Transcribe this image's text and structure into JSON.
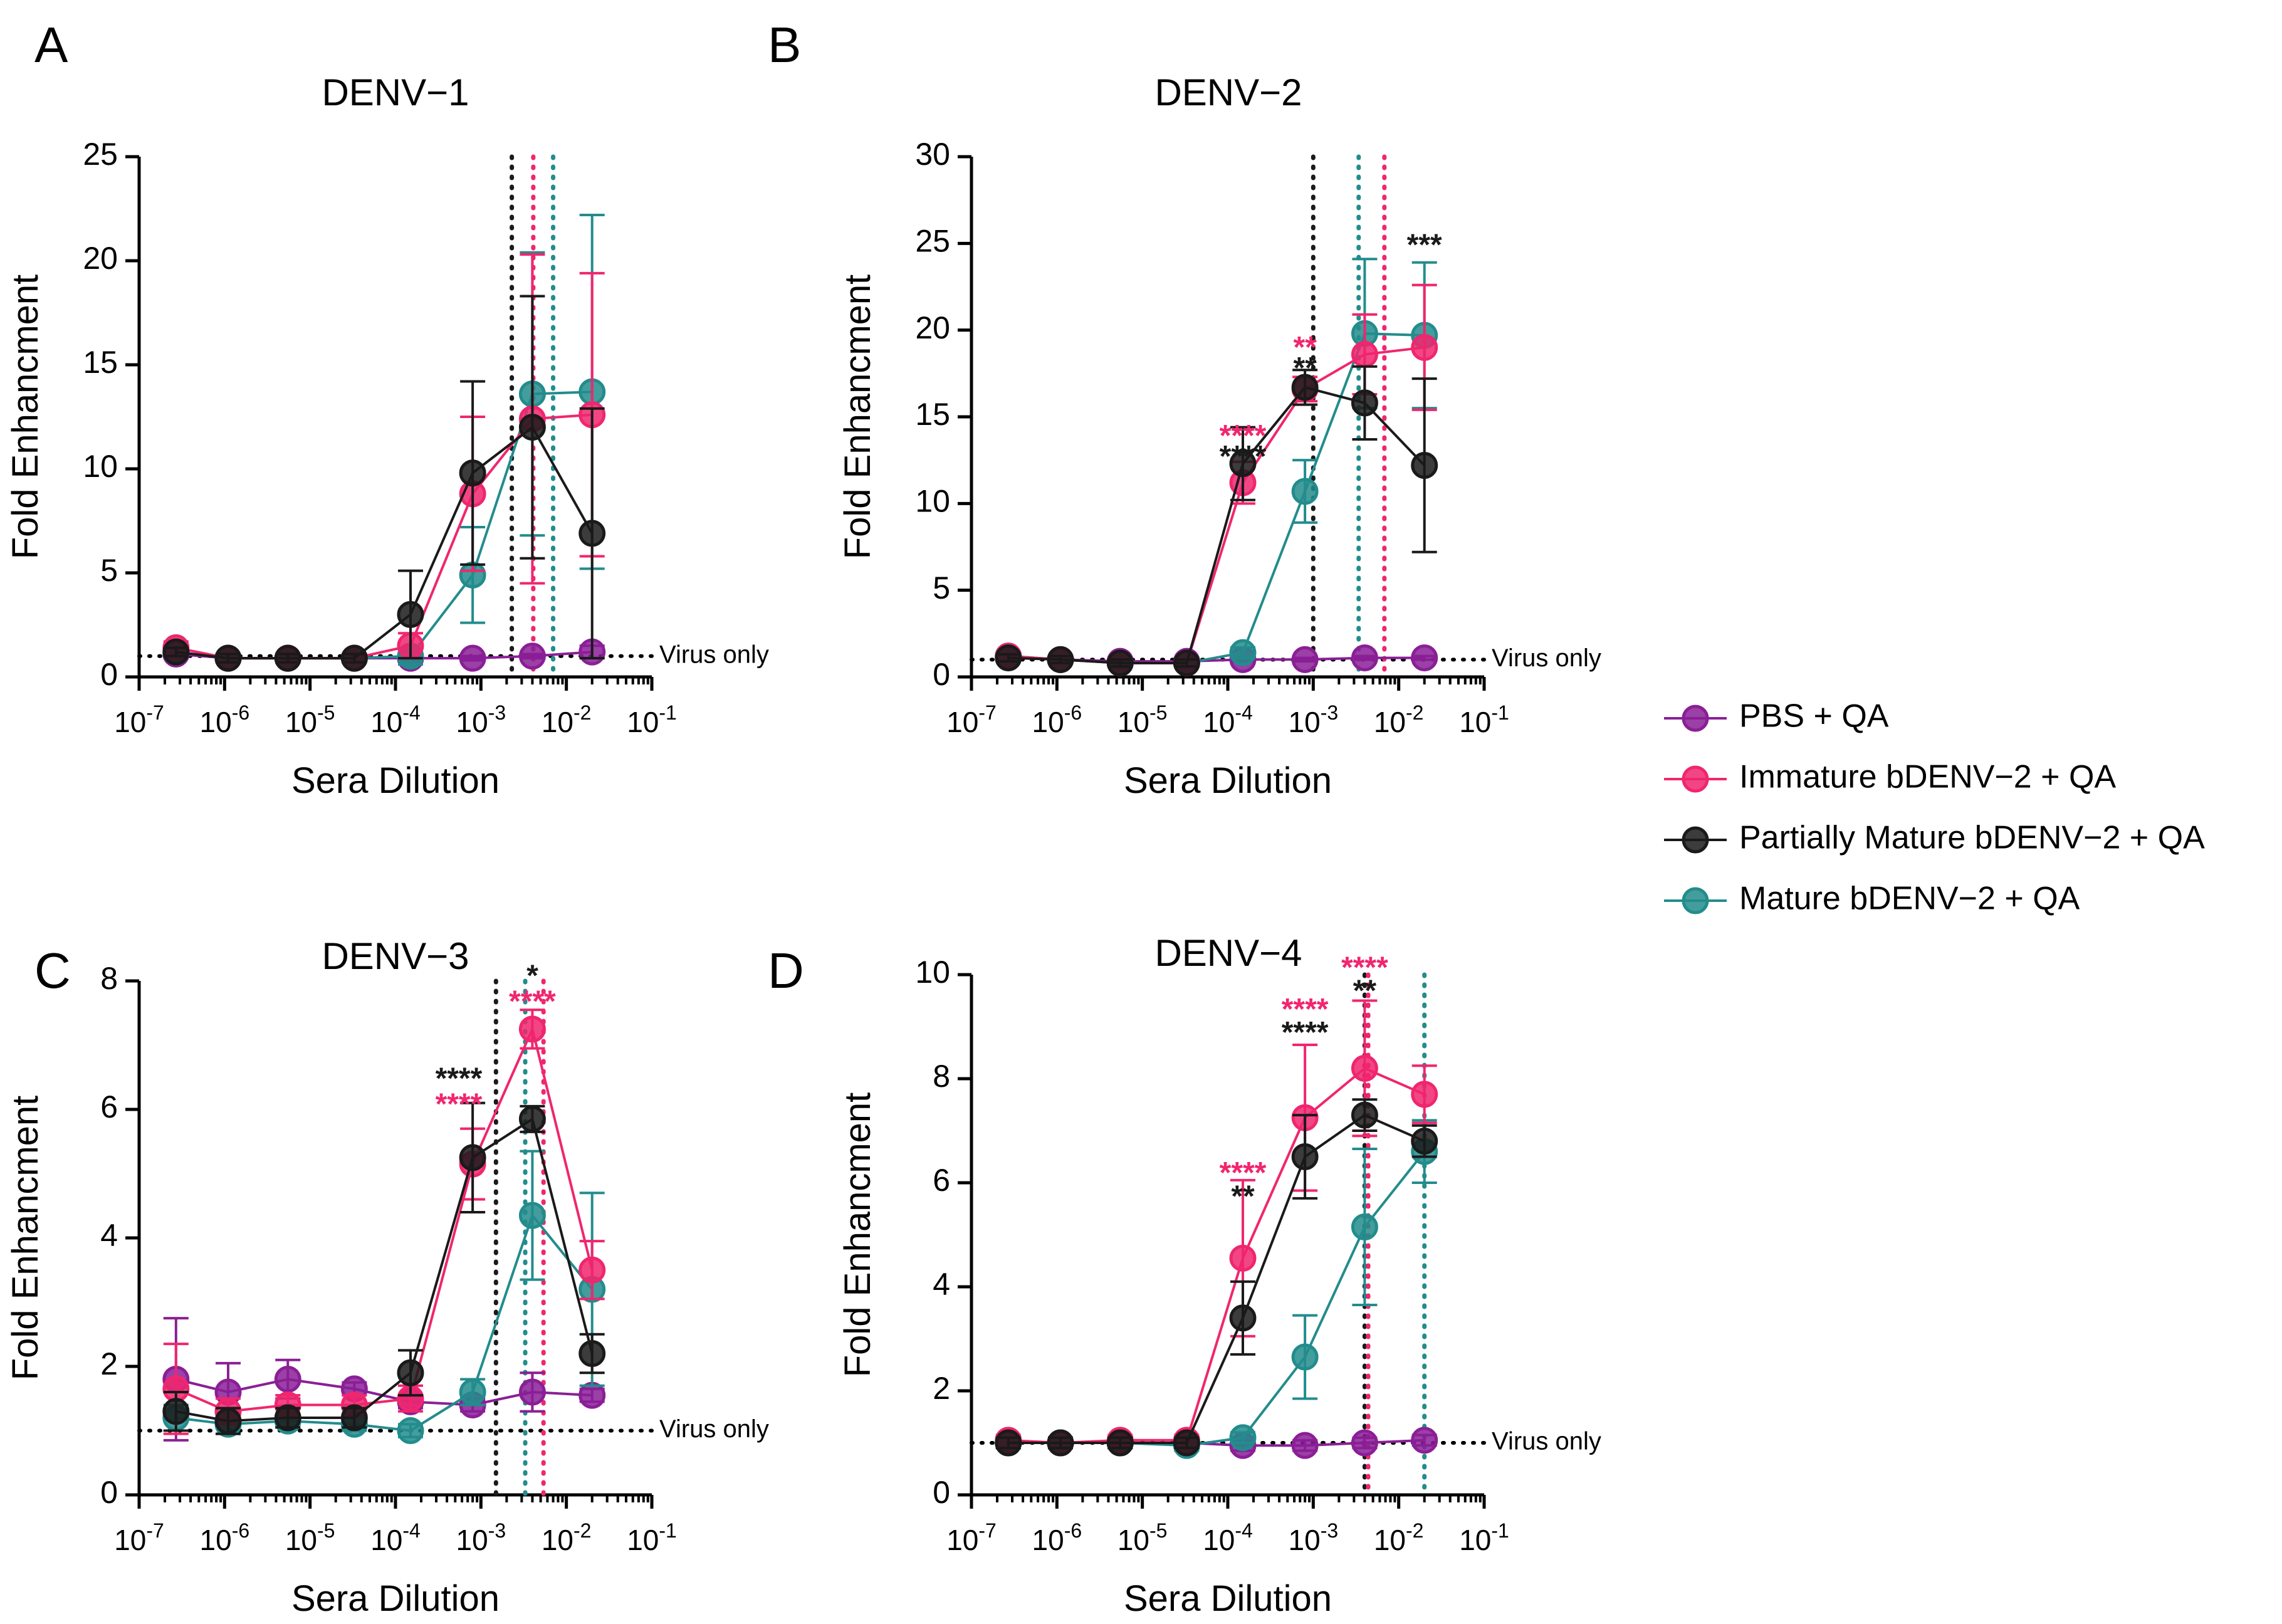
{
  "figure": {
    "panel_letters": [
      "A",
      "B",
      "C",
      "D"
    ],
    "colors": {
      "PBS + QA": "#8a1f96",
      "Immature bDENV-2 + QA": "#f0266e",
      "Partially Mature bDENV-2 + QA": "#1a1a1a",
      "Mature bDENV-2 + QA": "#238c8c",
      "axis": "#000000",
      "baseline": "#000000"
    },
    "legend": [
      {
        "name": "PBS + QA",
        "label": "PBS + QA"
      },
      {
        "name": "Immature bDENV-2 + QA",
        "label": "Immature bDENV−2 + QA"
      },
      {
        "name": "Partially Mature bDENV-2 + QA",
        "label": "Partially Mature bDENV−2 + QA"
      },
      {
        "name": "Mature bDENV-2 + QA",
        "label": "Mature bDENV−2 + QA"
      }
    ],
    "baseline_label": "Virus only"
  },
  "chart_data": [
    {
      "type": "line",
      "panel": "A",
      "title": "DENV−1",
      "xlabel": "Sera Dilution",
      "ylabel": "Fold Enhancment",
      "xscale": "log",
      "xlim_exp": [
        -7,
        -1
      ],
      "x_tick_exps": [
        -7,
        -6,
        -5,
        -4,
        -3,
        -2,
        -1
      ],
      "ylim": [
        0,
        25
      ],
      "y_ticks": [
        0,
        5,
        10,
        15,
        20,
        25
      ],
      "x": [
        2.7e-07,
        1.1e-06,
        5.5e-06,
        3.3e-05,
        0.00015,
        0.0008,
        0.004,
        0.02
      ],
      "series": [
        {
          "name": "PBS + QA",
          "values": [
            1.1,
            0.9,
            0.9,
            0.9,
            0.9,
            0.9,
            1.0,
            1.2
          ],
          "err": [
            0.2,
            0.1,
            0.1,
            0.1,
            0.1,
            0.1,
            0.1,
            0.3
          ]
        },
        {
          "name": "Immature bDENV-2 + QA",
          "values": [
            1.4,
            0.9,
            0.9,
            0.9,
            1.5,
            8.8,
            12.4,
            12.6
          ],
          "err": [
            0.3,
            0.2,
            0.2,
            0.2,
            0.6,
            3.7,
            7.9,
            6.8
          ]
        },
        {
          "name": "Partially Mature bDENV-2 + QA",
          "values": [
            1.2,
            0.9,
            0.9,
            0.9,
            3.0,
            9.8,
            12.0,
            6.9
          ],
          "err": [
            0.2,
            0.2,
            0.2,
            0.2,
            2.1,
            4.4,
            6.3,
            6.0
          ]
        },
        {
          "name": "Mature bDENV-2 + QA",
          "values": [
            1.2,
            0.9,
            0.9,
            0.9,
            1.0,
            4.9,
            13.6,
            13.7
          ],
          "err": [
            0.2,
            0.1,
            0.1,
            0.1,
            0.4,
            2.3,
            6.8,
            8.5
          ]
        }
      ],
      "vlines": [
        {
          "x": 0.0023,
          "color_of": "Partially Mature bDENV-2 + QA"
        },
        {
          "x": 0.0041,
          "color_of": "Immature bDENV-2 + QA"
        },
        {
          "x": 0.007,
          "color_of": "Mature bDENV-2 + QA"
        }
      ],
      "annotations": []
    },
    {
      "type": "line",
      "panel": "B",
      "title": "DENV−2",
      "xlabel": "Sera Dilution",
      "ylabel": "Fold Enhancment",
      "xscale": "log",
      "xlim_exp": [
        -7,
        -1
      ],
      "x_tick_exps": [
        -7,
        -6,
        -5,
        -4,
        -3,
        -2,
        -1
      ],
      "ylim": [
        0,
        30
      ],
      "y_ticks": [
        0,
        5,
        10,
        15,
        20,
        25,
        30
      ],
      "x": [
        2.7e-07,
        1.1e-06,
        5.5e-06,
        3.3e-05,
        0.00015,
        0.0008,
        0.004,
        0.02
      ],
      "series": [
        {
          "name": "PBS + QA",
          "values": [
            1.2,
            1.0,
            0.9,
            0.9,
            1.0,
            1.0,
            1.1,
            1.1
          ],
          "err": [
            0.2,
            0.1,
            0.1,
            0.1,
            0.1,
            0.1,
            0.1,
            0.1
          ]
        },
        {
          "name": "Immature bDENV-2 + QA",
          "values": [
            1.2,
            1.0,
            0.8,
            0.8,
            11.2,
            16.6,
            18.6,
            19.0
          ],
          "err": [
            0.2,
            0.2,
            0.2,
            0.2,
            1.2,
            0.7,
            2.3,
            3.6
          ]
        },
        {
          "name": "Partially Mature bDENV-2 + QA",
          "values": [
            1.1,
            1.0,
            0.8,
            0.8,
            12.3,
            16.7,
            15.8,
            12.2
          ],
          "err": [
            0.2,
            0.2,
            0.2,
            0.2,
            2.1,
            1.0,
            2.1,
            5.0
          ]
        },
        {
          "name": "Mature bDENV-2 + QA",
          "values": [
            1.2,
            1.0,
            0.8,
            0.8,
            1.4,
            10.7,
            19.8,
            19.7
          ],
          "err": [
            0.2,
            0.1,
            0.1,
            0.1,
            0.3,
            1.8,
            4.3,
            4.2
          ]
        }
      ],
      "vlines": [
        {
          "x": 0.001,
          "color_of": "Partially Mature bDENV-2 + QA"
        },
        {
          "x": 0.0034,
          "color_of": "Mature bDENV-2 + QA"
        },
        {
          "x": 0.0068,
          "color_of": "Immature bDENV-2 + QA"
        }
      ],
      "annotations": [
        {
          "x": 0.00015,
          "y": 13.8,
          "text": "****",
          "color_of": "Immature bDENV-2 + QA"
        },
        {
          "x": 0.00015,
          "y": 12.6,
          "text": "****",
          "color_of": "Partially Mature bDENV-2 + QA"
        },
        {
          "x": 0.0008,
          "y": 18.9,
          "text": "**",
          "color_of": "Immature bDENV-2 + QA"
        },
        {
          "x": 0.0008,
          "y": 17.7,
          "text": "**",
          "color_of": "Partially Mature bDENV-2 + QA"
        },
        {
          "x": 0.02,
          "y": 24.8,
          "text": "***",
          "color_of": "Partially Mature bDENV-2 + QA"
        }
      ]
    },
    {
      "type": "line",
      "panel": "C",
      "title": "DENV−3",
      "xlabel": "Sera Dilution",
      "ylabel": "Fold Enhancment",
      "xscale": "log",
      "xlim_exp": [
        -7,
        -1
      ],
      "x_tick_exps": [
        -7,
        -6,
        -5,
        -4,
        -3,
        -2,
        -1
      ],
      "ylim": [
        0,
        8
      ],
      "y_ticks": [
        0,
        2,
        4,
        6,
        8
      ],
      "x": [
        2.7e-07,
        1.1e-06,
        5.5e-06,
        3.3e-05,
        0.00015,
        0.0008,
        0.004,
        0.02
      ],
      "series": [
        {
          "name": "PBS + QA",
          "values": [
            1.8,
            1.6,
            1.8,
            1.65,
            1.45,
            1.4,
            1.6,
            1.55
          ],
          "err": [
            0.95,
            0.45,
            0.3,
            0.1,
            0.1,
            0.1,
            0.3,
            0.1
          ]
        },
        {
          "name": "Immature bDENV-2 + QA",
          "values": [
            1.65,
            1.3,
            1.4,
            1.4,
            1.5,
            5.15,
            7.25,
            3.5
          ],
          "err": [
            0.7,
            0.2,
            0.15,
            0.15,
            0.2,
            0.55,
            0.3,
            0.45
          ]
        },
        {
          "name": "Partially Mature bDENV-2 + QA",
          "values": [
            1.3,
            1.15,
            1.2,
            1.2,
            1.9,
            5.25,
            5.85,
            2.2
          ],
          "err": [
            0.3,
            0.2,
            0.15,
            0.15,
            0.35,
            0.85,
            0.2,
            0.3
          ]
        },
        {
          "name": "Mature bDENV-2 + QA",
          "values": [
            1.2,
            1.1,
            1.15,
            1.1,
            1.0,
            1.6,
            4.35,
            3.2
          ],
          "err": [
            0.2,
            0.15,
            0.1,
            0.1,
            0.1,
            0.2,
            1.0,
            1.5
          ]
        }
      ],
      "vlines": [
        {
          "x": 0.0015,
          "color_of": "Partially Mature bDENV-2 + QA"
        },
        {
          "x": 0.0033,
          "color_of": "Mature bDENV-2 + QA"
        },
        {
          "x": 0.0054,
          "color_of": "Immature bDENV-2 + QA"
        }
      ],
      "annotations": [
        {
          "x": 0.00055,
          "y": 6.45,
          "text": "****",
          "color_of": "Partially Mature bDENV-2 + QA"
        },
        {
          "x": 0.00055,
          "y": 6.05,
          "text": "****",
          "color_of": "Immature bDENV-2 + QA"
        },
        {
          "x": 0.004,
          "y": 8.05,
          "text": "*",
          "color_of": "Partially Mature bDENV-2 + QA"
        },
        {
          "x": 0.004,
          "y": 7.65,
          "text": "****",
          "color_of": "Immature bDENV-2 + QA"
        }
      ]
    },
    {
      "type": "line",
      "panel": "D",
      "title": "DENV−4",
      "xlabel": "Sera Dilution",
      "ylabel": "Fold Enhancment",
      "xscale": "log",
      "xlim_exp": [
        -7,
        -1
      ],
      "x_tick_exps": [
        -7,
        -6,
        -5,
        -4,
        -3,
        -2,
        -1
      ],
      "ylim": [
        0,
        10
      ],
      "y_ticks": [
        0,
        2,
        4,
        6,
        8,
        10
      ],
      "x": [
        2.7e-07,
        1.1e-06,
        5.5e-06,
        3.3e-05,
        0.00015,
        0.0008,
        0.004,
        0.02
      ],
      "series": [
        {
          "name": "PBS + QA",
          "values": [
            1.0,
            1.0,
            1.0,
            1.0,
            0.95,
            0.95,
            1.0,
            1.05
          ],
          "err": [
            0.1,
            0.1,
            0.1,
            0.1,
            0.1,
            0.1,
            0.1,
            0.1
          ]
        },
        {
          "name": "Immature bDENV-2 + QA",
          "values": [
            1.05,
            1.0,
            1.05,
            1.05,
            4.55,
            7.25,
            8.2,
            7.7
          ],
          "err": [
            0.1,
            0.1,
            0.1,
            0.1,
            1.5,
            1.4,
            1.3,
            0.55
          ]
        },
        {
          "name": "Partially Mature bDENV-2 + QA",
          "values": [
            1.0,
            1.0,
            1.0,
            1.0,
            3.4,
            6.5,
            7.3,
            6.8
          ],
          "err": [
            0.1,
            0.1,
            0.1,
            0.1,
            0.7,
            0.8,
            0.3,
            0.3
          ]
        },
        {
          "name": "Mature bDENV-2 + QA",
          "values": [
            1.0,
            1.0,
            1.0,
            0.95,
            1.1,
            2.65,
            5.15,
            6.6
          ],
          "err": [
            0.1,
            0.1,
            0.1,
            0.1,
            0.1,
            0.8,
            1.5,
            0.6
          ]
        }
      ],
      "vlines": [
        {
          "x": 0.004,
          "color_of": "Partially Mature bDENV-2 + QA"
        },
        {
          "x": 0.0044,
          "color_of": "Immature bDENV-2 + QA"
        },
        {
          "x": 0.02,
          "color_of": "Mature bDENV-2 + QA"
        }
      ],
      "annotations": [
        {
          "x": 0.00015,
          "y": 6.15,
          "text": "****",
          "color_of": "Immature bDENV-2 + QA"
        },
        {
          "x": 0.00015,
          "y": 5.7,
          "text": "**",
          "color_of": "Partially Mature bDENV-2 + QA"
        },
        {
          "x": 0.0008,
          "y": 9.3,
          "text": "****",
          "color_of": "Immature bDENV-2 + QA"
        },
        {
          "x": 0.0008,
          "y": 8.85,
          "text": "****",
          "color_of": "Partially Mature bDENV-2 + QA"
        },
        {
          "x": 0.004,
          "y": 10.1,
          "text": "****",
          "color_of": "Immature bDENV-2 + QA"
        },
        {
          "x": 0.004,
          "y": 9.65,
          "text": "**",
          "color_of": "Partially Mature bDENV-2 + QA"
        }
      ]
    }
  ]
}
